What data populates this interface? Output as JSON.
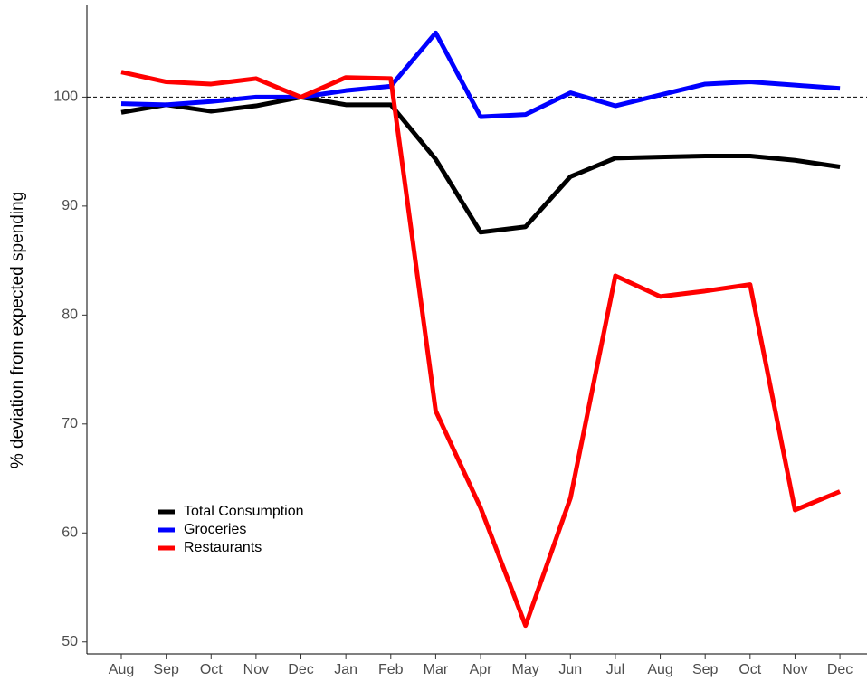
{
  "chart_data": {
    "type": "line",
    "y_label": "% deviation from expected spending",
    "categories": [
      "Aug",
      "Sep",
      "Oct",
      "Nov",
      "Dec",
      "Jan",
      "Feb",
      "Mar",
      "Apr",
      "May",
      "Jun",
      "Jul",
      "Aug",
      "Sep",
      "Oct",
      "Nov",
      "Dec"
    ],
    "series": [
      {
        "name": "Total Consumption",
        "color": "#000000",
        "values": [
          98.6,
          99.3,
          98.7,
          99.2,
          100,
          99.3,
          99.3,
          94.3,
          87.6,
          88.1,
          92.7,
          94.4,
          94.5,
          94.6,
          94.6,
          94.2,
          93.6
        ]
      },
      {
        "name": "Groceries",
        "color": "#0000ff",
        "values": [
          99.4,
          99.3,
          99.6,
          100.0,
          100,
          100.6,
          101.0,
          105.9,
          98.2,
          98.4,
          100.4,
          99.2,
          100.2,
          101.2,
          101.4,
          101.1,
          100.8
        ]
      },
      {
        "name": "Restaurants",
        "color": "#ff0000",
        "values": [
          102.3,
          101.4,
          101.2,
          101.7,
          100,
          101.8,
          101.7,
          71.2,
          62.3,
          51.5,
          63.2,
          83.6,
          81.7,
          82.2,
          82.8,
          62.1,
          63.8
        ]
      }
    ],
    "ylim": [
      48.9,
      108.5
    ],
    "yticks": [
      50,
      60,
      70,
      80,
      90,
      100
    ],
    "reference_line": 100,
    "legend": "lower left",
    "grid": false
  }
}
